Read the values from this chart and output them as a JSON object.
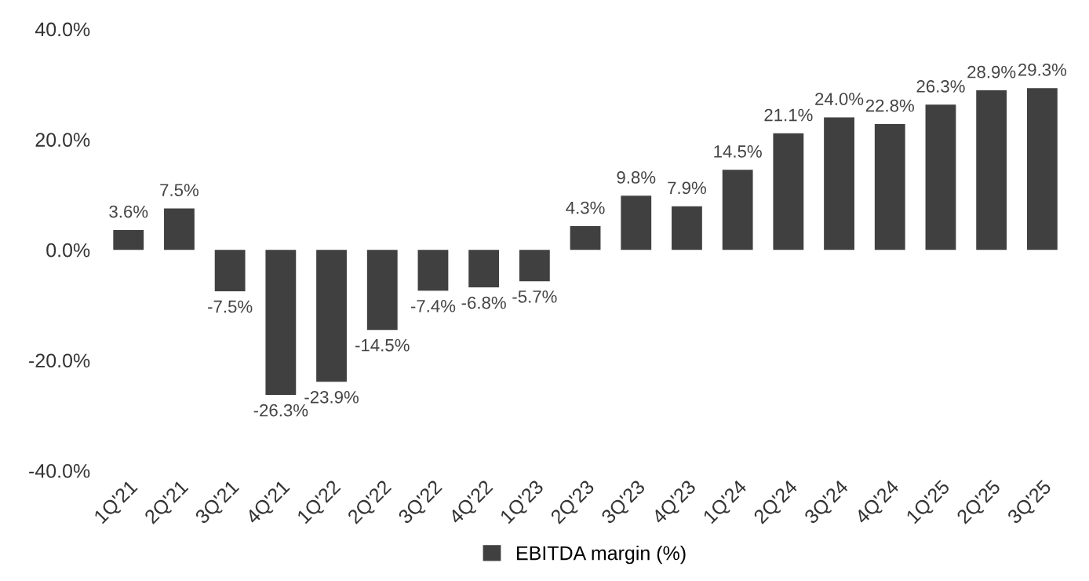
{
  "chart_data": {
    "type": "bar",
    "categories": [
      "1Q'21",
      "2Q'21",
      "3Q'21",
      "4Q'21",
      "1Q'22",
      "2Q'22",
      "3Q'22",
      "4Q'22",
      "1Q'23",
      "2Q'23",
      "3Q'23",
      "4Q'23",
      "1Q'24",
      "2Q'24",
      "3Q'24",
      "4Q'24",
      "1Q'25",
      "2Q'25",
      "3Q'25"
    ],
    "series": [
      {
        "name": "EBITDA margin (%)",
        "color": "#404040",
        "values": [
          3.6,
          7.5,
          -7.5,
          -26.3,
          -23.9,
          -14.5,
          -7.4,
          -6.8,
          -5.7,
          4.3,
          9.8,
          7.9,
          14.5,
          21.1,
          24.0,
          22.8,
          26.3,
          28.9,
          29.3
        ],
        "value_labels": [
          "3.6%",
          "7.5%",
          "-7.5%",
          "-26.3%",
          "-23.9%",
          "-14.5%",
          "-7.4%",
          "-6.8%",
          "-5.7%",
          "4.3%",
          "9.8%",
          "7.9%",
          "14.5%",
          "21.1%",
          "24.0%",
          "22.8%",
          "26.3%",
          "28.9%",
          "29.3%"
        ]
      }
    ],
    "ylim": [
      -40,
      40
    ],
    "yticks": [
      {
        "value": -40,
        "label": "-40.0%"
      },
      {
        "value": -20,
        "label": "-20.0%"
      },
      {
        "value": 0,
        "label": "0.0%"
      },
      {
        "value": 20,
        "label": "20.0%"
      },
      {
        "value": 40,
        "label": "40.0%"
      }
    ],
    "grid": false,
    "legend": "bottom"
  }
}
